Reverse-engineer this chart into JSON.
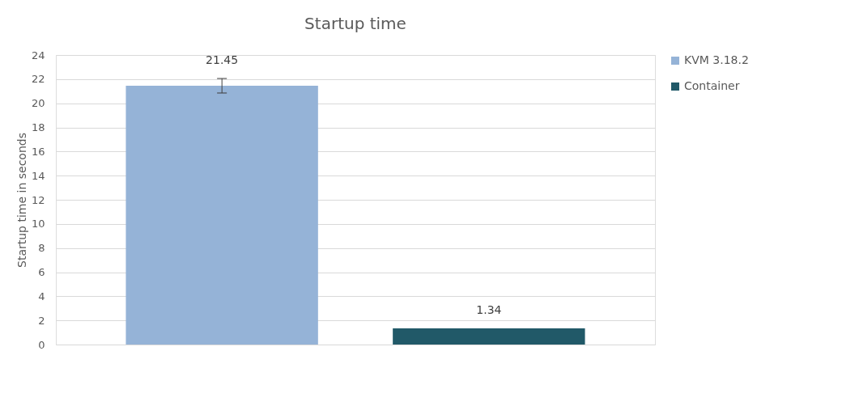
{
  "chart_data": {
    "type": "bar",
    "title": "Startup time",
    "ylabel": "Startup time in seconds",
    "categories": [
      null
    ],
    "series": [
      {
        "name": "KVM 3.18.2",
        "color": "#95b3d7",
        "values": [
          21.45
        ],
        "errors": [
          0.6
        ]
      },
      {
        "name": "Container",
        "color": "#215968",
        "values": [
          1.34
        ],
        "errors": [
          null
        ]
      }
    ],
    "ylim": [
      0,
      24
    ],
    "yticks": [
      0,
      2,
      4,
      6,
      8,
      10,
      12,
      14,
      16,
      18,
      20,
      22,
      24
    ],
    "grid": "y",
    "legend": "right",
    "data_labels": true,
    "tick_labels": "y"
  }
}
